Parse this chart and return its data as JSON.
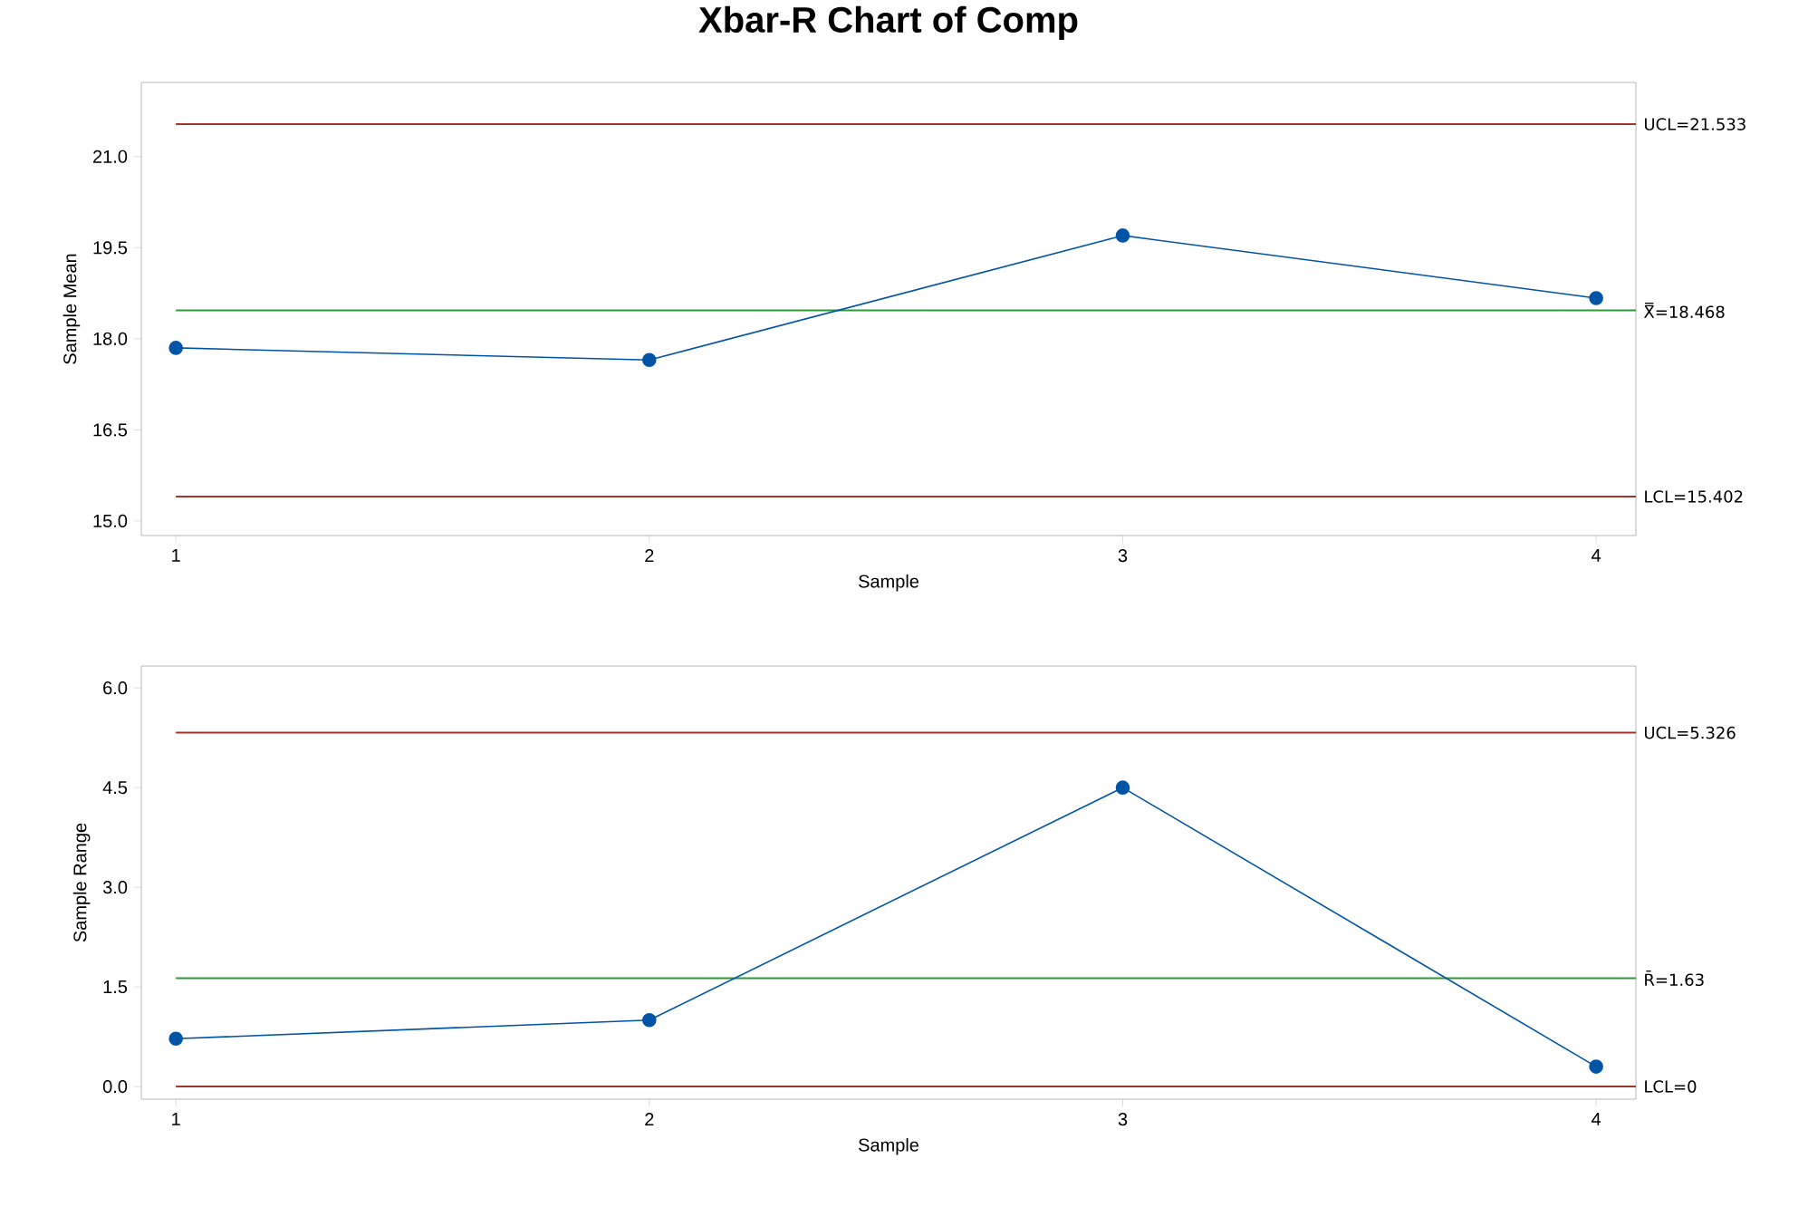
{
  "chart_data": [
    {
      "type": "line",
      "title": "Xbar-R Chart of Comp",
      "xlabel": "Sample",
      "ylabel": "Sample Mean",
      "x": [
        1,
        2,
        3,
        4
      ],
      "xlim": [
        0.927,
        4.084
      ],
      "xticks": [
        1,
        2,
        3,
        4
      ],
      "ylim": [
        14.76,
        22.22
      ],
      "yticks": [
        {
          "value": 15,
          "label": "15.0"
        },
        {
          "value": 16.5,
          "label": "16.5"
        },
        {
          "value": 18,
          "label": "18.0"
        },
        {
          "value": 19.5,
          "label": "19.5"
        },
        {
          "value": 21,
          "label": "21.0"
        }
      ],
      "marker": "circle",
      "series": [
        {
          "color": "#0054a6",
          "values": [
            17.85,
            17.65,
            19.7,
            18.67
          ]
        }
      ],
      "ref_lines": [
        {
          "axis": "y",
          "value": 21.533,
          "label": "UCL=21.533",
          "color": "#a0352c"
        },
        {
          "axis": "y",
          "value": 18.468,
          "label": "X̿=18.468",
          "color": "#2e9a35"
        },
        {
          "axis": "y",
          "value": 15.402,
          "label": "LCL=15.402",
          "color": "#a0352c"
        }
      ]
    },
    {
      "type": "line",
      "xlabel": "Sample",
      "ylabel": "Sample Range",
      "x": [
        1,
        2,
        3,
        4
      ],
      "xlim": [
        0.927,
        4.084
      ],
      "xticks": [
        1,
        2,
        3,
        4
      ],
      "ylim": [
        -0.19,
        6.33
      ],
      "yticks": [
        {
          "value": 0,
          "label": "0.0"
        },
        {
          "value": 1.5,
          "label": "1.5"
        },
        {
          "value": 3,
          "label": "3.0"
        },
        {
          "value": 4.5,
          "label": "4.5"
        },
        {
          "value": 6,
          "label": "6.0"
        }
      ],
      "marker": "circle",
      "series": [
        {
          "color": "#0054a6",
          "values": [
            0.72,
            1.0,
            4.5,
            0.3
          ]
        }
      ],
      "ref_lines": [
        {
          "axis": "y",
          "value": 5.326,
          "label": "UCL=5.326",
          "color": "#a0352c"
        },
        {
          "axis": "y",
          "value": 1.63,
          "label": "R̄=1.63",
          "color": "#2e9a35"
        },
        {
          "axis": "y",
          "value": 0,
          "label": "LCL=0",
          "color": "#a0352c"
        }
      ]
    }
  ]
}
